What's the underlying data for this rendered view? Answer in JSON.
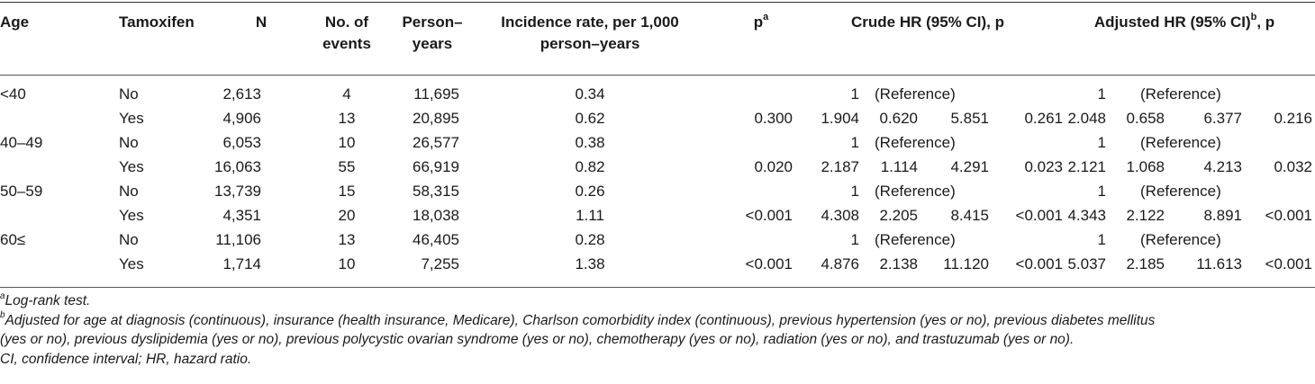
{
  "header": {
    "age": "Age",
    "tamoxifen": "Tamoxifen",
    "n": "N",
    "events_line1": "No. of",
    "events_line2": "events",
    "py_line1": "Person–",
    "py_line2": "years",
    "rate_line1": "Incidence rate, per 1,000",
    "rate_line2": "person–years",
    "p": "p",
    "p_sup": "a",
    "crude": "Crude HR (95% CI), p",
    "adjusted_pre": "Adjusted HR (95% CI)",
    "adjusted_sup": "b",
    "adjusted_post": ", p"
  },
  "rows": [
    {
      "age": "<40",
      "tam": "No",
      "n": "2,613",
      "events": "4",
      "py": "11,695",
      "rate": "0.34",
      "p": "",
      "c_hr": "1",
      "c_lo": "(Reference)",
      "c_hi": "",
      "c_p": "",
      "a_hr": "1",
      "a_lo": "(Reference)",
      "a_hi": "",
      "a_p": ""
    },
    {
      "age": "",
      "tam": "Yes",
      "n": "4,906",
      "events": "13",
      "py": "20,895",
      "rate": "0.62",
      "p": "0.300",
      "c_hr": "1.904",
      "c_lo": "0.620",
      "c_hi": "5.851",
      "c_p": "0.261",
      "a_hr": "2.048",
      "a_lo": "0.658",
      "a_hi": "6.377",
      "a_p": "0.216"
    },
    {
      "age": "40–49",
      "tam": "No",
      "n": "6,053",
      "events": "10",
      "py": "26,577",
      "rate": "0.38",
      "p": "",
      "c_hr": "1",
      "c_lo": "(Reference)",
      "c_hi": "",
      "c_p": "",
      "a_hr": "1",
      "a_lo": "(Reference)",
      "a_hi": "",
      "a_p": ""
    },
    {
      "age": "",
      "tam": "Yes",
      "n": "16,063",
      "events": "55",
      "py": "66,919",
      "rate": "0.82",
      "p": "0.020",
      "c_hr": "2.187",
      "c_lo": "1.114",
      "c_hi": "4.291",
      "c_p": "0.023",
      "a_hr": "2.121",
      "a_lo": "1.068",
      "a_hi": "4.213",
      "a_p": "0.032"
    },
    {
      "age": "50–59",
      "tam": "No",
      "n": "13,739",
      "events": "15",
      "py": "58,315",
      "rate": "0.26",
      "p": "",
      "c_hr": "1",
      "c_lo": "(Reference)",
      "c_hi": "",
      "c_p": "",
      "a_hr": "1",
      "a_lo": "(Reference)",
      "a_hi": "",
      "a_p": ""
    },
    {
      "age": "",
      "tam": "Yes",
      "n": "4,351",
      "events": "20",
      "py": "18,038",
      "rate": "1.11",
      "p": "<0.001",
      "c_hr": "4.308",
      "c_lo": "2.205",
      "c_hi": "8.415",
      "c_p": "<0.001",
      "a_hr": "4.343",
      "a_lo": "2.122",
      "a_hi": "8.891",
      "a_p": "<0.001"
    },
    {
      "age": "60≤",
      "tam": "No",
      "n": "11,106",
      "events": "13",
      "py": "46,405",
      "rate": "0.28",
      "p": "",
      "c_hr": "1",
      "c_lo": "(Reference)",
      "c_hi": "",
      "c_p": "",
      "a_hr": "1",
      "a_lo": "(Reference)",
      "a_hi": "",
      "a_p": ""
    },
    {
      "age": "",
      "tam": "Yes",
      "n": "1,714",
      "events": "10",
      "py": "7,255",
      "rate": "1.38",
      "p": "<0.001",
      "c_hr": "4.876",
      "c_lo": "2.138",
      "c_hi": "11.120",
      "c_p": "<0.001",
      "a_hr": "5.037",
      "a_lo": "2.185",
      "a_hi": "11.613",
      "a_p": "<0.001"
    }
  ],
  "notes": {
    "a_mark": "a",
    "a_text": "Log-rank test.",
    "b_mark": "b",
    "b_line1": "Adjusted for age at diagnosis (continuous), insurance (health insurance, Medicare), Charlson comorbidity index (continuous), previous hypertension (yes or no), previous diabetes mellitus",
    "b_line2": "(yes or no), previous dyslipidemia (yes or no), previous polycystic ovarian syndrome (yes or no), chemotherapy (yes or no), radiation (yes or no), and trastuzumab (yes or no).",
    "abbrev": "CI, confidence interval; HR, hazard ratio."
  }
}
